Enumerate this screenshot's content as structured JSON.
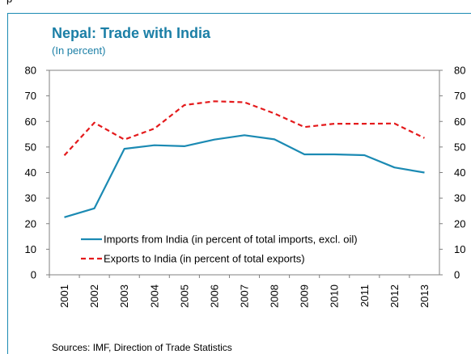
{
  "page": {
    "top_snippet": "p",
    "source": "Sources: IMF, Direction of Trade Statistics"
  },
  "chart_data": {
    "type": "line",
    "title": "Nepal: Trade with India",
    "subtitle": "(In percent)",
    "x": [
      "2001",
      "2002",
      "2003",
      "2004",
      "2005",
      "2006",
      "2007",
      "2008",
      "2009",
      "2010",
      "2011",
      "2012",
      "2013"
    ],
    "ylim": [
      0,
      80
    ],
    "yticks": [
      "0",
      "10",
      "20",
      "30",
      "40",
      "50",
      "60",
      "70",
      "80"
    ],
    "grid": false,
    "legend_position": "lower-center",
    "series": [
      {
        "name": "Imports from India (in percent of total imports, excl. oil)",
        "color": "#1b8ab3",
        "style": "solid",
        "values": [
          22.5,
          26.0,
          49.3,
          50.7,
          50.3,
          52.9,
          54.6,
          53.0,
          47.1,
          47.1,
          46.8,
          42.0,
          40.0
        ]
      },
      {
        "name": "Exports to India (in percent of total exports)",
        "color": "#e41a1c",
        "style": "dashed",
        "values": [
          46.7,
          59.5,
          52.9,
          57.2,
          66.4,
          67.9,
          67.5,
          63.1,
          57.8,
          59.1,
          59.1,
          59.2,
          53.5
        ]
      }
    ]
  }
}
